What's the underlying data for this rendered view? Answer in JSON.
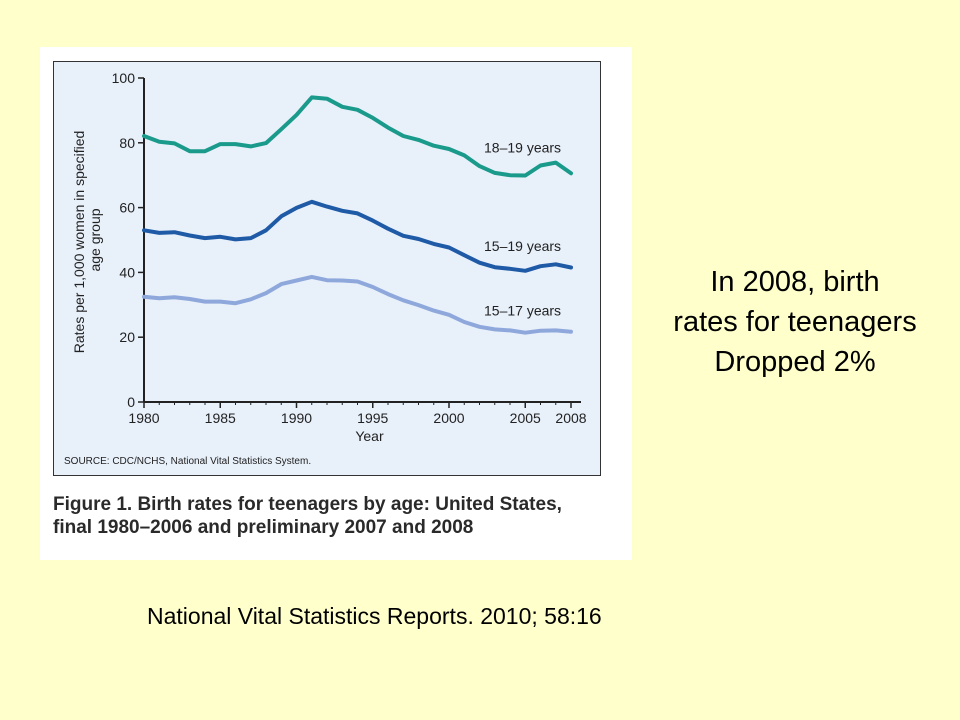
{
  "figure": {
    "source_note": "SOURCE: CDC/NCHS, National Vital Statistics System.",
    "caption_line1": "Figure 1. Birth rates for teenagers by age: United States,",
    "caption_line2": "final 1980–2006 and preliminary 2007 and 2008"
  },
  "annotation": {
    "line1": "In 2008, birth",
    "line2": "rates for teenagers",
    "line3": "Dropped 2%"
  },
  "citation": "National Vital Statistics Reports. 2010; 58:16",
  "colors": {
    "18_19": "#1a9a8a",
    "15_19": "#1f5aa6",
    "15_17": "#8fa8dc",
    "axis": "#222222",
    "panel": "#e8f0fa"
  },
  "chart_data": {
    "type": "line",
    "title": "",
    "xlabel": "Year",
    "ylabel": "Rates per 1,000 women in specified age group",
    "ylabel_lines": [
      "Rates per 1,000 women in specified",
      "age group"
    ],
    "xlim": [
      1980,
      2008
    ],
    "ylim": [
      0,
      100
    ],
    "x_ticks": [
      1980,
      1985,
      1990,
      1995,
      2000,
      2005,
      2008
    ],
    "y_ticks": [
      0,
      20,
      40,
      60,
      80,
      100
    ],
    "grid": false,
    "x": [
      1980,
      1981,
      1982,
      1983,
      1984,
      1985,
      1986,
      1987,
      1988,
      1989,
      1990,
      1991,
      1992,
      1993,
      1994,
      1995,
      1996,
      1997,
      1998,
      1999,
      2000,
      2001,
      2002,
      2003,
      2004,
      2005,
      2006,
      2007,
      2008
    ],
    "series": [
      {
        "name": "18–19 years",
        "key": "18_19",
        "values": [
          82.1,
          80.3,
          79.8,
          77.4,
          77.4,
          79.6,
          79.6,
          78.9,
          79.9,
          84.2,
          88.6,
          94.0,
          93.6,
          91.1,
          90.2,
          87.7,
          84.7,
          82.1,
          80.9,
          79.1,
          78.1,
          76.1,
          72.8,
          70.7,
          70.0,
          69.9,
          73.0,
          73.9,
          70.6
        ]
      },
      {
        "name": "15–19 years",
        "key": "15_19",
        "values": [
          53.0,
          52.2,
          52.4,
          51.4,
          50.6,
          51.0,
          50.2,
          50.6,
          53.0,
          57.3,
          59.9,
          61.8,
          60.3,
          59.0,
          58.2,
          56.0,
          53.5,
          51.3,
          50.3,
          48.8,
          47.7,
          45.3,
          43.0,
          41.6,
          41.1,
          40.5,
          41.9,
          42.5,
          41.5
        ]
      },
      {
        "name": "15–17 years",
        "key": "15_17",
        "values": [
          32.5,
          32.0,
          32.3,
          31.8,
          31.0,
          31.0,
          30.5,
          31.7,
          33.6,
          36.4,
          37.5,
          38.6,
          37.6,
          37.5,
          37.2,
          35.5,
          33.3,
          31.4,
          29.9,
          28.2,
          26.9,
          24.7,
          23.2,
          22.4,
          22.1,
          21.4,
          22.0,
          22.1,
          21.7
        ]
      }
    ]
  }
}
